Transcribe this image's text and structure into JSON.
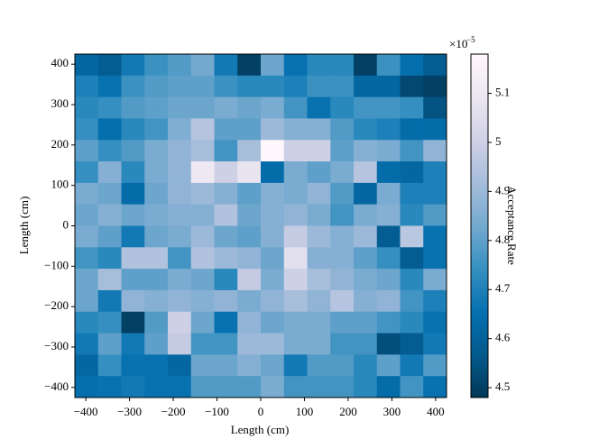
{
  "chart_data": {
    "type": "heatmap",
    "xlabel": "Length (cm)",
    "ylabel": "Length (cm)",
    "colorbar_label": "Acceptance Rate",
    "colorbar_multiplier": "×10",
    "colorbar_exponent": "−5",
    "colormap": "PuBu_r",
    "xlim": [
      -425,
      425
    ],
    "ylim": [
      -425,
      425
    ],
    "clim": [
      4.48,
      5.18
    ],
    "xticks": [
      {
        "value": -400,
        "label": "−400"
      },
      {
        "value": -300,
        "label": "−300"
      },
      {
        "value": -200,
        "label": "−200"
      },
      {
        "value": -100,
        "label": "−100"
      },
      0,
      100,
      200,
      300,
      400
    ],
    "yticks": [
      {
        "value": -400,
        "label": "−400"
      },
      {
        "value": -300,
        "label": "−300"
      },
      {
        "value": -200,
        "label": "−200"
      },
      {
        "value": -100,
        "label": "−100"
      },
      0,
      100,
      200,
      300,
      400
    ],
    "cticks": [
      4.5,
      4.6,
      4.7,
      4.8,
      4.9,
      5.0,
      5.1
    ],
    "z": [
      [
        4.62,
        4.58,
        4.68,
        4.75,
        4.78,
        4.83,
        4.68,
        4.5,
        4.82,
        4.66,
        4.72,
        4.72,
        4.5,
        4.75,
        4.65,
        4.58
      ],
      [
        4.7,
        4.66,
        4.75,
        4.78,
        4.8,
        4.8,
        4.75,
        4.72,
        4.72,
        4.7,
        4.75,
        4.75,
        4.62,
        4.62,
        4.52,
        4.5
      ],
      [
        4.72,
        4.74,
        4.78,
        4.8,
        4.82,
        4.82,
        4.84,
        4.82,
        4.84,
        4.76,
        4.66,
        4.72,
        4.76,
        4.76,
        4.74,
        4.55
      ],
      [
        4.74,
        4.65,
        4.72,
        4.76,
        4.85,
        4.95,
        4.8,
        4.8,
        4.9,
        4.86,
        4.86,
        4.78,
        4.72,
        4.7,
        4.64,
        4.64
      ],
      [
        4.8,
        4.74,
        4.78,
        4.84,
        4.88,
        4.92,
        4.76,
        4.92,
        5.18,
        5.0,
        5.0,
        4.8,
        4.86,
        4.84,
        4.76,
        4.88
      ],
      [
        4.74,
        4.86,
        4.72,
        4.84,
        4.88,
        5.1,
        5.0,
        5.08,
        4.64,
        4.84,
        4.8,
        4.84,
        4.95,
        4.64,
        4.62,
        4.7
      ],
      [
        4.84,
        4.82,
        4.64,
        4.82,
        4.88,
        4.9,
        4.86,
        4.8,
        4.86,
        4.84,
        4.88,
        4.78,
        4.62,
        4.84,
        4.7,
        4.7
      ],
      [
        4.82,
        4.86,
        4.82,
        4.84,
        4.86,
        4.86,
        4.94,
        4.82,
        4.86,
        4.88,
        4.84,
        4.76,
        4.84,
        4.86,
        4.72,
        4.78
      ],
      [
        4.84,
        4.8,
        4.68,
        4.82,
        4.84,
        4.9,
        4.82,
        4.8,
        4.86,
        4.98,
        4.9,
        4.86,
        4.9,
        4.58,
        4.96,
        4.66
      ],
      [
        4.76,
        4.72,
        4.94,
        4.94,
        4.76,
        4.94,
        4.9,
        4.88,
        4.82,
        5.06,
        4.86,
        4.86,
        4.8,
        4.74,
        4.58,
        4.66
      ],
      [
        4.82,
        4.92,
        4.8,
        4.8,
        4.84,
        4.82,
        4.72,
        4.98,
        4.84,
        5.0,
        4.92,
        4.88,
        4.84,
        4.82,
        4.72,
        4.84
      ],
      [
        4.82,
        4.68,
        4.88,
        4.86,
        4.88,
        4.86,
        4.88,
        4.84,
        4.88,
        4.92,
        4.88,
        4.95,
        4.86,
        4.88,
        4.76,
        4.7
      ],
      [
        4.72,
        4.74,
        4.5,
        4.78,
        5.0,
        4.82,
        4.66,
        4.88,
        4.82,
        4.84,
        4.84,
        4.8,
        4.8,
        4.76,
        4.72,
        4.66
      ],
      [
        4.68,
        4.8,
        4.68,
        4.8,
        4.98,
        4.76,
        4.76,
        4.9,
        4.9,
        4.84,
        4.84,
        4.76,
        4.76,
        4.54,
        4.58,
        4.68
      ],
      [
        4.62,
        4.74,
        4.66,
        4.66,
        4.62,
        4.82,
        4.82,
        4.86,
        4.82,
        4.68,
        4.78,
        4.78,
        4.72,
        4.8,
        4.68,
        4.78
      ],
      [
        4.65,
        4.66,
        4.68,
        4.66,
        4.66,
        4.78,
        4.78,
        4.78,
        4.84,
        4.76,
        4.76,
        4.76,
        4.72,
        4.64,
        4.76,
        4.66
      ]
    ]
  }
}
